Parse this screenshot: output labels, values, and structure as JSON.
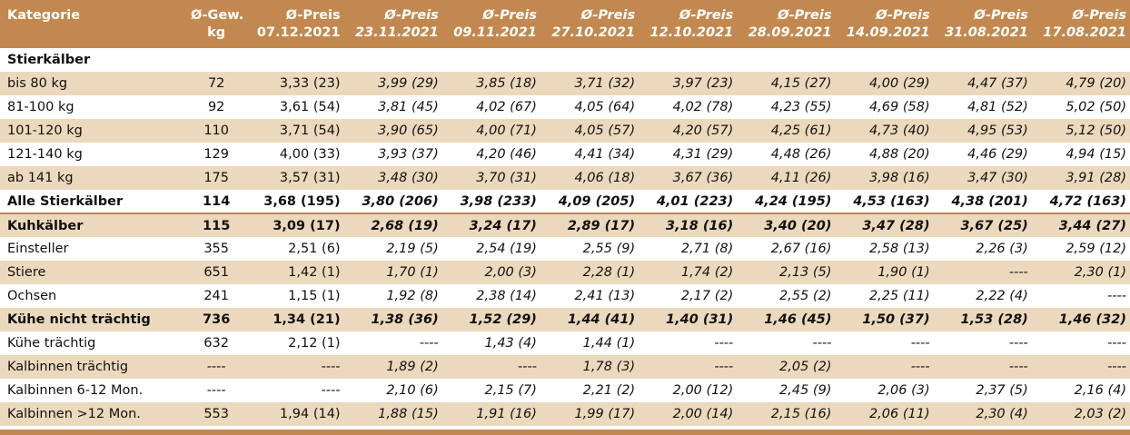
{
  "colors": {
    "header_bg": "#c2884f",
    "stripe": "#ecd9bd",
    "header_text": "#ffffff"
  },
  "header": {
    "kategorie": "Kategorie",
    "gew_l1": "Ø-Gew.",
    "gew_l2": "kg",
    "preis_label": "Ø-Preis",
    "dates": [
      "07.12.2021",
      "23.11.2021",
      "09.11.2021",
      "27.10.2021",
      "12.10.2021",
      "28.09.2021",
      "14.09.2021",
      "31.08.2021",
      "17.08.2021"
    ]
  },
  "sections": {
    "stierkaelber": "Stierkälber"
  },
  "rows": [
    {
      "label": "bis 80 kg",
      "gew": "72",
      "values": [
        "3,33 (23)",
        "3,99 (29)",
        "3,85 (18)",
        "3,71 (32)",
        "3,97 (23)",
        "4,15 (27)",
        "4,00 (29)",
        "4,47 (37)",
        "4,79 (20)"
      ]
    },
    {
      "label": "81-100 kg",
      "gew": "92",
      "values": [
        "3,61 (54)",
        "3,81 (45)",
        "4,02 (67)",
        "4,05 (64)",
        "4,02 (78)",
        "4,23 (55)",
        "4,69 (58)",
        "4,81 (52)",
        "5,02 (50)"
      ]
    },
    {
      "label": "101-120 kg",
      "gew": "110",
      "values": [
        "3,71 (54)",
        "3,90 (65)",
        "4,00 (71)",
        "4,05 (57)",
        "4,20 (57)",
        "4,25 (61)",
        "4,73 (40)",
        "4,95 (53)",
        "5,12 (50)"
      ]
    },
    {
      "label": "121-140 kg",
      "gew": "129",
      "values": [
        "4,00 (33)",
        "3,93 (37)",
        "4,20 (46)",
        "4,41 (34)",
        "4,31 (29)",
        "4,48 (26)",
        "4,88 (20)",
        "4,46 (29)",
        "4,94 (15)"
      ]
    },
    {
      "label": "ab 141 kg",
      "gew": "175",
      "values": [
        "3,57 (31)",
        "3,48 (30)",
        "3,70 (31)",
        "4,06 (18)",
        "3,67 (36)",
        "4,11 (26)",
        "3,98 (16)",
        "3,47 (30)",
        "3,91 (28)"
      ]
    },
    {
      "label": "Alle Stierkälber",
      "gew": "114",
      "values": [
        "3,68 (195)",
        "3,80 (206)",
        "3,98 (233)",
        "4,09 (205)",
        "4,01 (223)",
        "4,24 (195)",
        "4,53 (163)",
        "4,38 (201)",
        "4,72 (163)"
      ]
    },
    {
      "label": "Kuhkälber",
      "gew": "115",
      "values": [
        "3,09 (17)",
        "2,68 (19)",
        "3,24 (17)",
        "2,89 (17)",
        "3,18 (16)",
        "3,40 (20)",
        "3,47 (28)",
        "3,67 (25)",
        "3,44 (27)"
      ]
    },
    {
      "label": "Einsteller",
      "gew": "355",
      "values": [
        "2,51 (6)",
        "2,19 (5)",
        "2,54 (19)",
        "2,55 (9)",
        "2,71 (8)",
        "2,67 (16)",
        "2,58 (13)",
        "2,26 (3)",
        "2,59 (12)"
      ]
    },
    {
      "label": "Stiere",
      "gew": "651",
      "values": [
        "1,42 (1)",
        "1,70 (1)",
        "2,00 (3)",
        "2,28 (1)",
        "1,74 (2)",
        "2,13 (5)",
        "1,90 (1)",
        "----",
        "2,30 (1)"
      ]
    },
    {
      "label": "Ochsen",
      "gew": "241",
      "values": [
        "1,15 (1)",
        "1,92 (8)",
        "2,38 (14)",
        "2,41 (13)",
        "2,17 (2)",
        "2,55 (2)",
        "2,25 (11)",
        "2,22 (4)",
        "----"
      ]
    },
    {
      "label": "Kühe nicht trächtig",
      "gew": "736",
      "values": [
        "1,34 (21)",
        "1,38 (36)",
        "1,52 (29)",
        "1,44 (41)",
        "1,40 (31)",
        "1,46 (45)",
        "1,50 (37)",
        "1,53 (28)",
        "1,46 (32)"
      ]
    },
    {
      "label": "Kühe trächtig",
      "gew": "632",
      "values": [
        "2,12 (1)",
        "----",
        "1,43 (4)",
        "1,44 (1)",
        "----",
        "----",
        "----",
        "----",
        "----"
      ]
    },
    {
      "label": "Kalbinnen trächtig",
      "gew": "----",
      "values": [
        "----",
        "1,89 (2)",
        "----",
        "1,78 (3)",
        "----",
        "2,05 (2)",
        "----",
        "----",
        "----"
      ]
    },
    {
      "label": "Kalbinnen 6-12 Mon.",
      "gew": "----",
      "values": [
        "----",
        "2,10 (6)",
        "2,15 (7)",
        "2,21 (2)",
        "2,00 (12)",
        "2,45 (9)",
        "2,06 (3)",
        "2,37 (5)",
        "2,16 (4)"
      ]
    },
    {
      "label": "Kalbinnen >12 Mon.",
      "gew": "553",
      "values": [
        "1,94 (14)",
        "1,88 (15)",
        "1,91 (16)",
        "1,99 (17)",
        "2,00 (14)",
        "2,15 (16)",
        "2,06 (11)",
        "2,30 (4)",
        "2,03 (2)"
      ]
    }
  ]
}
